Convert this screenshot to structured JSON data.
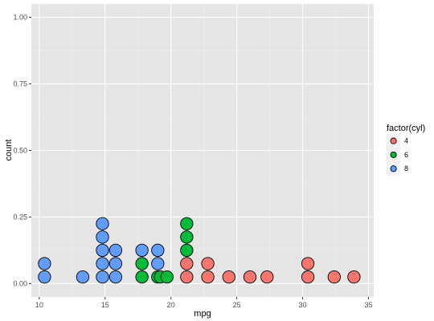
{
  "chart_data": {
    "type": "dotplot",
    "xlabel": "mpg",
    "ylabel": "count",
    "xlim": [
      9.4,
      35.4
    ],
    "ylim": [
      -0.05,
      1.05
    ],
    "x_ticks": [
      10,
      15,
      20,
      25,
      30,
      35
    ],
    "x_tick_labels": [
      "10",
      "15",
      "20",
      "25",
      "30",
      "35"
    ],
    "y_ticks": [
      0,
      0.25,
      0.5,
      0.75,
      1
    ],
    "y_tick_labels": [
      "0.00",
      "0.25",
      "0.50",
      "0.75",
      "1.00"
    ],
    "grid": true,
    "legend": {
      "title": "factor(cyl)",
      "position": "right",
      "entries": [
        {
          "label": "4",
          "color": "#F8766D"
        },
        {
          "label": "6",
          "color": "#00BA38"
        },
        {
          "label": "8",
          "color": "#619CFF"
        }
      ]
    },
    "stack_step": 0.05,
    "stacks": [
      {
        "x": 10.4,
        "groups": [
          "8",
          "8"
        ]
      },
      {
        "x": 13.3,
        "groups": [
          "8"
        ]
      },
      {
        "x": 14.8,
        "groups": [
          "8",
          "8",
          "8",
          "8",
          "8"
        ]
      },
      {
        "x": 15.8,
        "groups": [
          "8",
          "8",
          "8"
        ]
      },
      {
        "x": 17.8,
        "groups": [
          "6",
          "6",
          "8"
        ]
      },
      {
        "x": 19.0,
        "groups": [
          "6",
          "8",
          "8"
        ]
      },
      {
        "x": 19.2,
        "groups": [
          "6"
        ]
      },
      {
        "x": 19.7,
        "groups": [
          "6"
        ]
      },
      {
        "x": 21.2,
        "groups": [
          "4",
          "4",
          "6",
          "6",
          "6"
        ]
      },
      {
        "x": 22.8,
        "groups": [
          "4",
          "4"
        ]
      },
      {
        "x": 24.4,
        "groups": [
          "4"
        ]
      },
      {
        "x": 26.0,
        "groups": [
          "4"
        ]
      },
      {
        "x": 27.3,
        "groups": [
          "4"
        ]
      },
      {
        "x": 30.4,
        "groups": [
          "4",
          "4"
        ]
      },
      {
        "x": 32.4,
        "groups": [
          "4"
        ]
      },
      {
        "x": 33.9,
        "groups": [
          "4"
        ]
      }
    ]
  }
}
